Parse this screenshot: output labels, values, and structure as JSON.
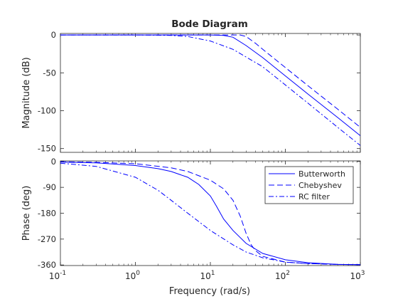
{
  "chart_data": {
    "type": "line",
    "title": "Bode Diagram",
    "xlabel": "Frequency  (rad/s)",
    "x_scale": "log",
    "xlim": [
      0.1,
      1000
    ],
    "x_ticks": [
      {
        "value": 0.1,
        "base": "10",
        "exp": "-1"
      },
      {
        "value": 1,
        "base": "10",
        "exp": "0"
      },
      {
        "value": 10,
        "base": "10",
        "exp": "1"
      },
      {
        "value": 100,
        "base": "10",
        "exp": "2"
      },
      {
        "value": 1000,
        "base": "10",
        "exp": "3"
      }
    ],
    "grid": false,
    "legend_position": "top-right",
    "line_color": "#0000ff",
    "panels": [
      {
        "ylabel": "Magnitude (dB)",
        "ylim": [
          -155,
          2
        ],
        "y_ticks": [
          {
            "value": 0,
            "label": "0"
          },
          {
            "value": -50,
            "label": "-50"
          },
          {
            "value": -100,
            "label": "-100"
          },
          {
            "value": -150,
            "label": "-150"
          }
        ],
        "series": [
          {
            "style": "solid",
            "x": [
              0.1,
              1,
              5,
              10,
              15,
              20,
              30,
              50,
              100,
              200,
              500,
              1000
            ],
            "y": [
              0,
              0,
              0,
              0,
              -0.5,
              -3,
              -14,
              -30,
              -54,
              -78,
              -109,
              -133
            ]
          },
          {
            "style": "dashed",
            "x": [
              0.1,
              1,
              10,
              20,
              25,
              30,
              40,
              50,
              100,
              200,
              500,
              1000
            ],
            "y": [
              0,
              0,
              0,
              0,
              0,
              -2,
              -11,
              -19,
              -43,
              -67,
              -98,
              -122
            ]
          },
          {
            "style": "dashdot",
            "x": [
              0.1,
              1,
              3,
              5,
              10,
              20,
              50,
              100,
              200,
              500,
              1000
            ],
            "y": [
              0,
              0,
              -0.5,
              -2,
              -8,
              -19,
              -42,
              -66,
              -90,
              -122,
              -146
            ]
          }
        ]
      },
      {
        "ylabel": "Phase (deg)",
        "ylim": [
          -362,
          2
        ],
        "y_ticks": [
          {
            "value": 0,
            "label": "0"
          },
          {
            "value": -90,
            "label": "-90"
          },
          {
            "value": -180,
            "label": "-180"
          },
          {
            "value": -270,
            "label": "-270"
          },
          {
            "value": -360,
            "label": "-360"
          }
        ],
        "series": [
          {
            "name": "Butterworth",
            "style": "solid",
            "x": [
              0.1,
              0.3,
              1,
              2,
              3,
              5,
              7,
              10,
              12,
              15,
              20,
              30,
              50,
              100,
              200,
              500,
              1000
            ],
            "y": [
              -2,
              -5,
              -14,
              -25,
              -35,
              -55,
              -80,
              -120,
              -155,
              -200,
              -240,
              -285,
              -320,
              -342,
              -352,
              -358,
              -359
            ]
          },
          {
            "name": "Chebyshev",
            "style": "dashed",
            "x": [
              0.1,
              0.3,
              1,
              3,
              5,
              10,
              15,
              20,
              25,
              30,
              35,
              40,
              50,
              100,
              200,
              500,
              1000
            ],
            "y": [
              -1,
              -3,
              -8,
              -22,
              -35,
              -65,
              -95,
              -135,
              -190,
              -250,
              -290,
              -310,
              -330,
              -350,
              -355,
              -358,
              -359
            ]
          },
          {
            "name": "RC filter",
            "style": "dashdot",
            "x": [
              0.1,
              0.3,
              1,
              2,
              3,
              5,
              10,
              20,
              30,
              50,
              100,
              200,
              500,
              1000
            ],
            "y": [
              -6,
              -17,
              -55,
              -100,
              -135,
              -180,
              -240,
              -290,
              -315,
              -335,
              -350,
              -355,
              -358,
              -359
            ]
          }
        ]
      }
    ]
  }
}
